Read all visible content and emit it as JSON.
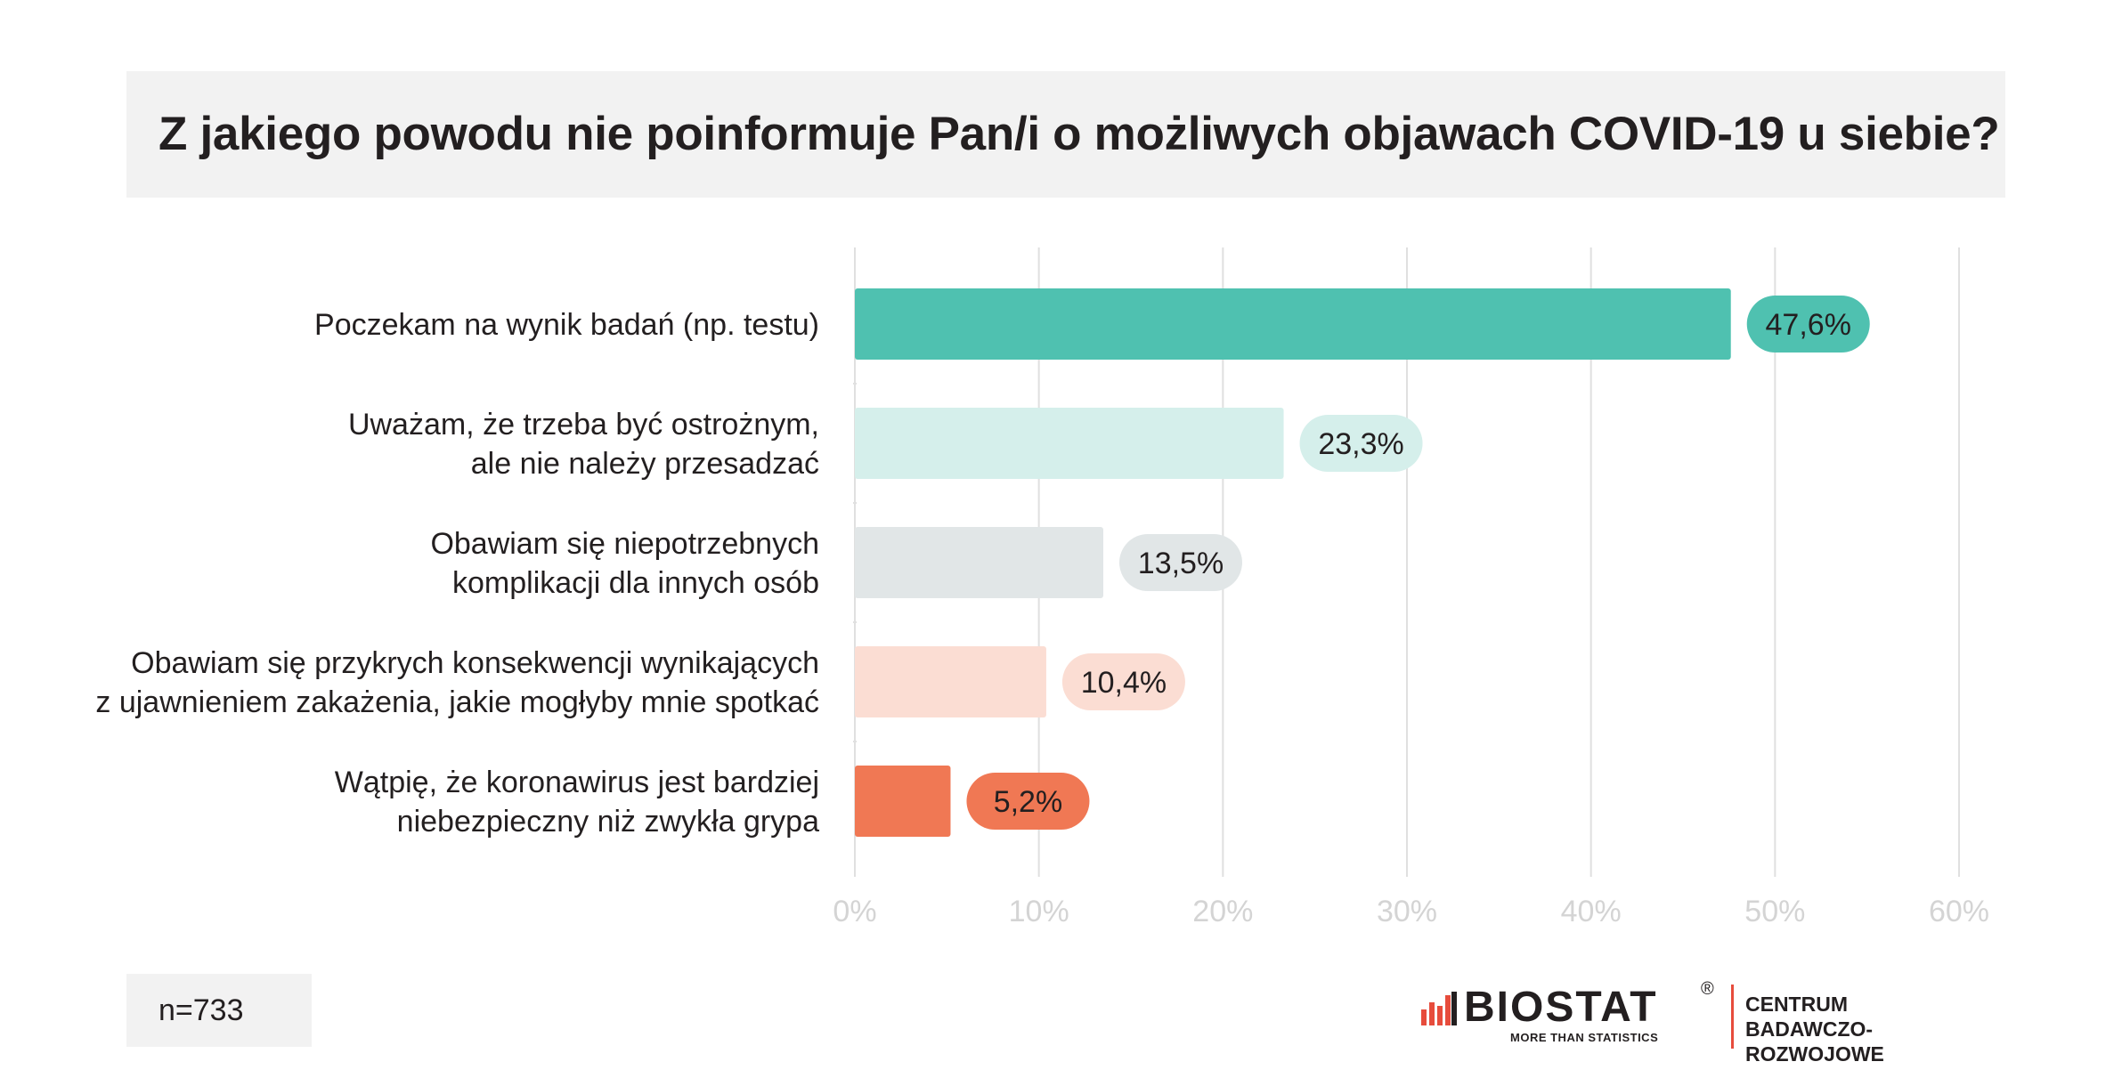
{
  "title": "Z jakiego powodu nie poinformuje Pan/i o możliwych objawach COVID-19 u siebie?",
  "note": "n=733",
  "logo": {
    "name": "BIOSTAT",
    "registered": "®",
    "tagline": "MORE THAN STATISTICS",
    "division_line1": "CENTRUM",
    "division_line2": "BADAWCZO-ROZWOJOWE"
  },
  "colors": {
    "bars": [
      "#4fc1b0",
      "#d5efeb",
      "#e1e6e7",
      "#fbddd3",
      "#f07854"
    ],
    "gridline": "#e0e0e0",
    "title_background": "#f2f2f2"
  },
  "chart_data": {
    "type": "bar",
    "orientation": "horizontal",
    "title": "Z jakiego powodu nie poinformuje Pan/i o możliwych objawach COVID-19 u siebie?",
    "categories": [
      [
        "Poczekam na wynik badań (np. testu)"
      ],
      [
        "Uważam, że trzeba być ostrożnym,",
        "ale nie należy przesadzać"
      ],
      [
        "Obawiam się niepotrzebnych",
        "komplikacji dla innych osób"
      ],
      [
        "Obawiam się przykrych konsekwencji wynikających",
        "z ujawnieniem zakażenia, jakie mogłyby mnie spotkać"
      ],
      [
        "Wątpię, że koronawirus jest bardziej",
        "niebezpieczny niż zwykła grypa"
      ]
    ],
    "values": [
      47.6,
      23.3,
      13.5,
      10.4,
      5.2
    ],
    "value_labels": [
      "47,6%",
      "23,3%",
      "13,5%",
      "10,4%",
      "5,2%"
    ],
    "label_text_colors": [
      "#231f20",
      "#231f20",
      "#231f20",
      "#231f20",
      "#231f20"
    ],
    "xlim": [
      0,
      60
    ],
    "ticks": [
      0,
      10,
      20,
      30,
      40,
      50,
      60
    ],
    "tick_labels": [
      "0%",
      "10%",
      "20%",
      "30%",
      "40%",
      "50%",
      "60%"
    ],
    "grid": true,
    "legend": "none"
  }
}
